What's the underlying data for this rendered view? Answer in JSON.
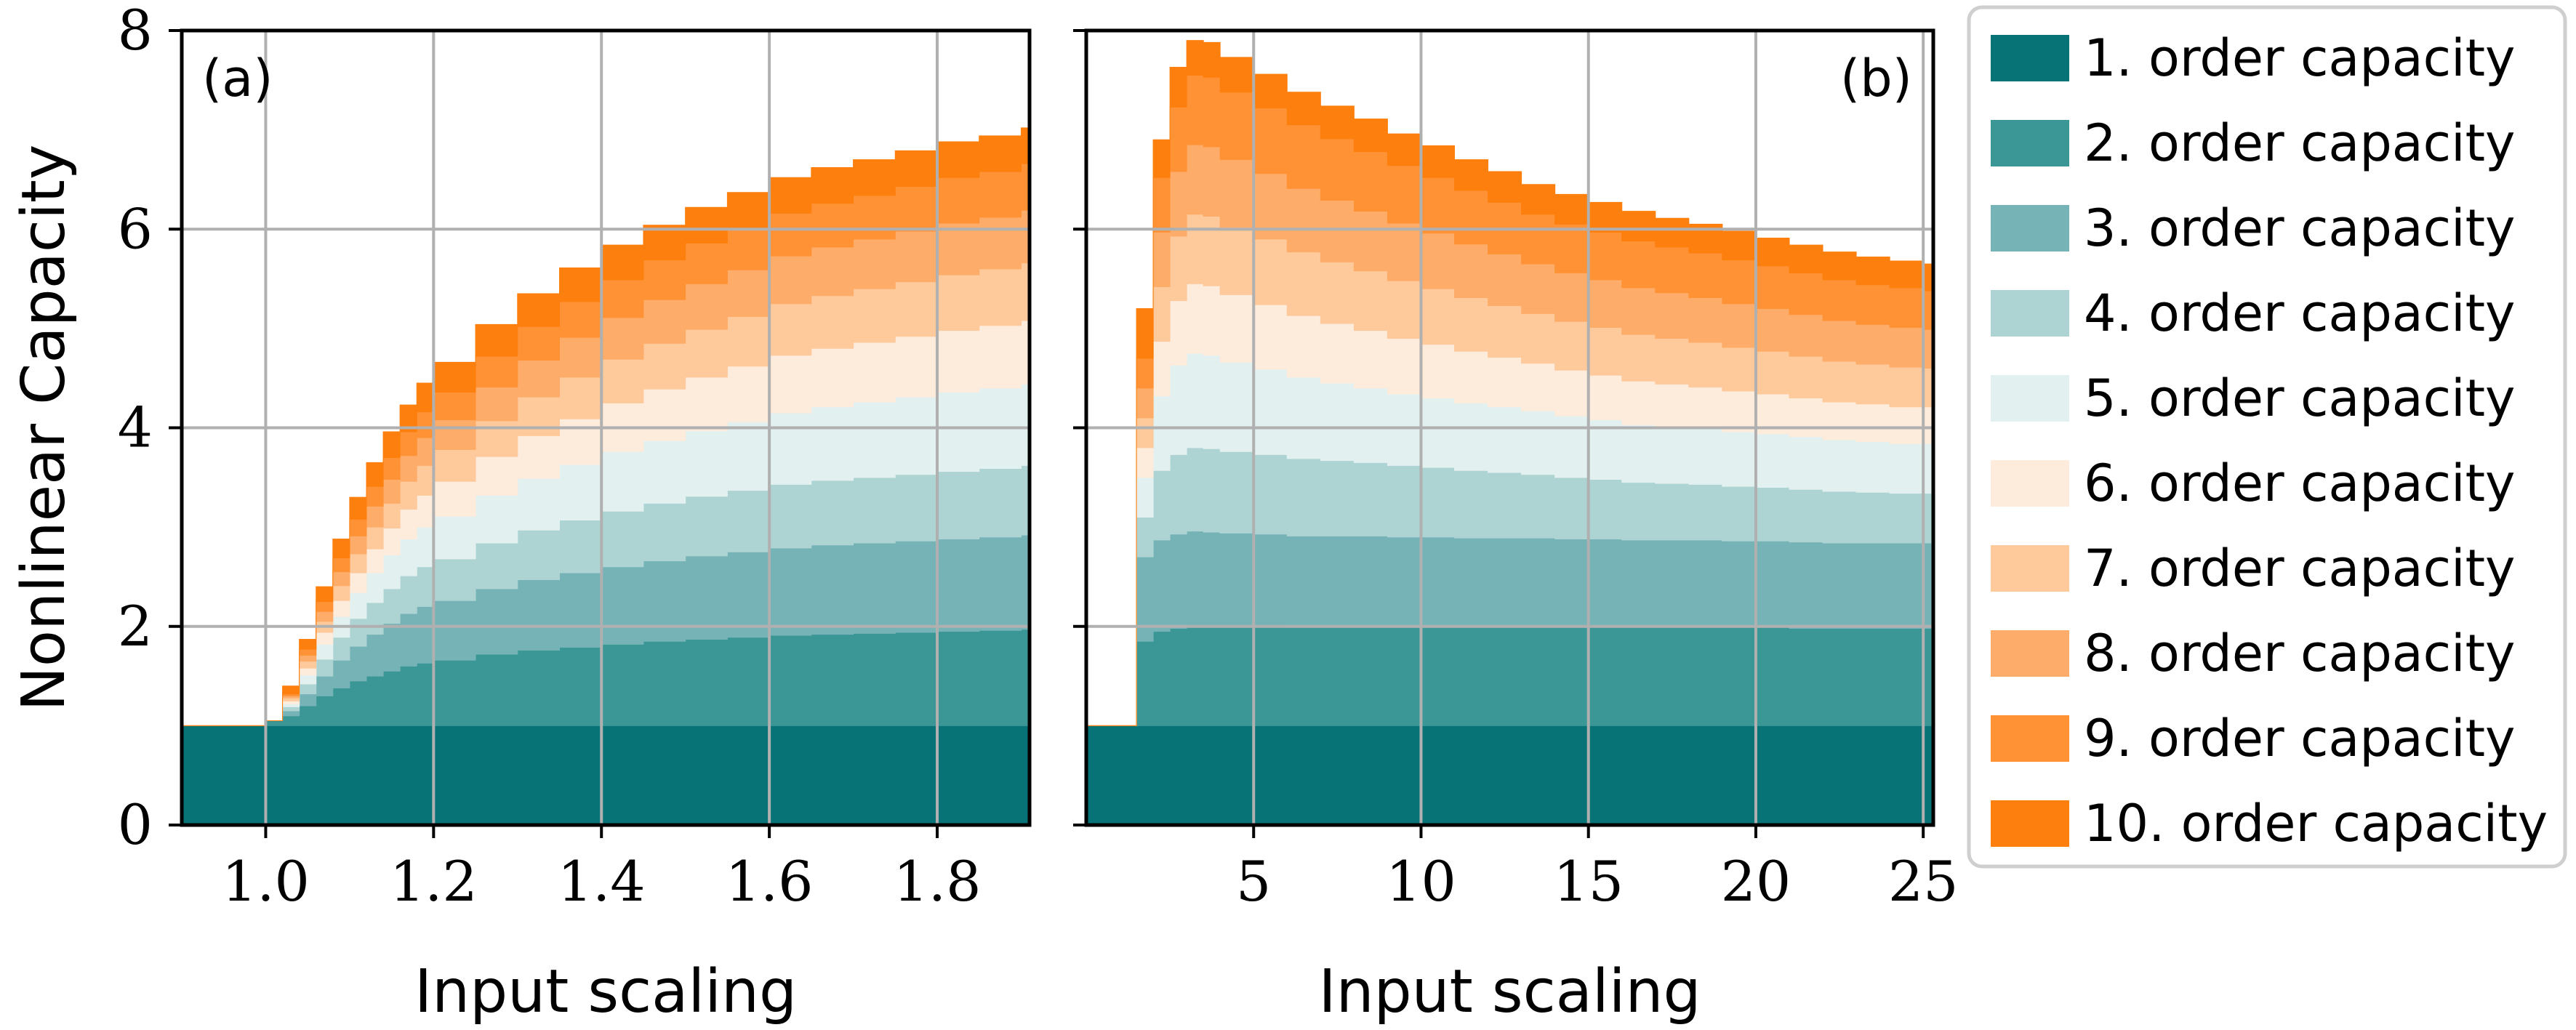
{
  "chart_data": [
    {
      "type": "area",
      "panel_label": "(a)",
      "xlabel": "Input scaling",
      "ylabel": "Nonlinear Capacity",
      "xlim": [
        0.9,
        1.91
      ],
      "ylim": [
        0,
        8
      ],
      "xticks": [
        1.0,
        1.2,
        1.4,
        1.6,
        1.8
      ],
      "xtick_labels": [
        "1.0",
        "1.2",
        "1.4",
        "1.6",
        "1.8"
      ],
      "yticks": [
        0,
        2,
        4,
        6,
        8
      ],
      "ytick_labels": [
        "0",
        "2",
        "4",
        "6",
        "8"
      ],
      "grid": true,
      "stacked": true,
      "step": true,
      "x": [
        0.9,
        0.95,
        1.0,
        1.02,
        1.04,
        1.06,
        1.08,
        1.1,
        1.12,
        1.14,
        1.16,
        1.18,
        1.2,
        1.25,
        1.3,
        1.35,
        1.4,
        1.45,
        1.5,
        1.55,
        1.6,
        1.65,
        1.7,
        1.75,
        1.8,
        1.85,
        1.9
      ],
      "series": [
        {
          "name": "1. order capacity",
          "values": [
            1.0,
            1.0,
            1.0,
            1.0,
            1.0,
            1.0,
            1.0,
            1.0,
            1.0,
            1.0,
            1.0,
            1.0,
            1.0,
            1.0,
            1.0,
            1.0,
            1.0,
            1.0,
            1.0,
            1.0,
            1.0,
            1.0,
            1.0,
            1.0,
            1.0,
            1.0,
            1.0
          ]
        },
        {
          "name": "2. order capacity",
          "values": [
            0.0,
            0.0,
            0.05,
            0.1,
            0.2,
            0.3,
            0.38,
            0.45,
            0.5,
            0.55,
            0.6,
            0.63,
            0.66,
            0.72,
            0.76,
            0.79,
            0.82,
            0.85,
            0.87,
            0.89,
            0.91,
            0.92,
            0.93,
            0.94,
            0.95,
            0.96,
            0.97
          ]
        },
        {
          "name": "3. order capacity",
          "values": [
            0.0,
            0.0,
            0.0,
            0.05,
            0.12,
            0.2,
            0.28,
            0.35,
            0.42,
            0.48,
            0.53,
            0.57,
            0.6,
            0.66,
            0.71,
            0.75,
            0.78,
            0.81,
            0.84,
            0.86,
            0.88,
            0.9,
            0.91,
            0.92,
            0.93,
            0.94,
            0.95
          ]
        },
        {
          "name": "4. order capacity",
          "values": [
            0.0,
            0.0,
            0.0,
            0.04,
            0.1,
            0.17,
            0.23,
            0.28,
            0.32,
            0.35,
            0.38,
            0.4,
            0.42,
            0.46,
            0.5,
            0.53,
            0.56,
            0.58,
            0.6,
            0.62,
            0.64,
            0.65,
            0.66,
            0.67,
            0.68,
            0.69,
            0.7
          ]
        },
        {
          "name": "5. order capacity",
          "values": [
            0.0,
            0.0,
            0.0,
            0.03,
            0.09,
            0.15,
            0.21,
            0.26,
            0.3,
            0.34,
            0.37,
            0.4,
            0.43,
            0.48,
            0.52,
            0.56,
            0.6,
            0.63,
            0.66,
            0.69,
            0.72,
            0.74,
            0.76,
            0.78,
            0.8,
            0.81,
            0.82
          ]
        },
        {
          "name": "6. order capacity",
          "values": [
            0.0,
            0.0,
            0.0,
            0.03,
            0.07,
            0.12,
            0.16,
            0.2,
            0.24,
            0.27,
            0.3,
            0.32,
            0.35,
            0.39,
            0.43,
            0.46,
            0.49,
            0.52,
            0.54,
            0.56,
            0.58,
            0.59,
            0.6,
            0.61,
            0.62,
            0.63,
            0.64
          ]
        },
        {
          "name": "7. order capacity",
          "values": [
            0.0,
            0.0,
            0.0,
            0.03,
            0.07,
            0.11,
            0.15,
            0.19,
            0.22,
            0.25,
            0.28,
            0.3,
            0.32,
            0.36,
            0.39,
            0.42,
            0.44,
            0.46,
            0.48,
            0.5,
            0.52,
            0.53,
            0.54,
            0.55,
            0.56,
            0.57,
            0.58
          ]
        },
        {
          "name": "8. order capacity",
          "values": [
            0.0,
            0.0,
            0.0,
            0.02,
            0.06,
            0.1,
            0.14,
            0.18,
            0.21,
            0.24,
            0.26,
            0.28,
            0.3,
            0.34,
            0.37,
            0.4,
            0.42,
            0.44,
            0.46,
            0.47,
            0.48,
            0.49,
            0.5,
            0.51,
            0.52,
            0.52,
            0.53
          ]
        },
        {
          "name": "9. order capacity",
          "values": [
            0.0,
            0.0,
            0.0,
            0.02,
            0.06,
            0.1,
            0.14,
            0.17,
            0.2,
            0.22,
            0.24,
            0.26,
            0.28,
            0.31,
            0.34,
            0.36,
            0.38,
            0.4,
            0.41,
            0.42,
            0.43,
            0.44,
            0.44,
            0.45,
            0.46,
            0.46,
            0.47
          ]
        },
        {
          "name": "10. order capacity",
          "values": [
            0.0,
            0.0,
            0.0,
            0.08,
            0.1,
            0.15,
            0.19,
            0.22,
            0.24,
            0.26,
            0.27,
            0.29,
            0.3,
            0.32,
            0.33,
            0.34,
            0.35,
            0.35,
            0.36,
            0.36,
            0.36,
            0.36,
            0.36,
            0.36,
            0.36,
            0.36,
            0.36
          ]
        }
      ]
    },
    {
      "type": "area",
      "panel_label": "(b)",
      "xlabel": "Input scaling",
      "ylabel": "",
      "xlim": [
        0.0,
        25.3
      ],
      "ylim": [
        0,
        8
      ],
      "xticks": [
        5,
        10,
        15,
        20,
        25
      ],
      "xtick_labels": [
        "5",
        "10",
        "15",
        "20",
        "25"
      ],
      "yticks": [
        0,
        2,
        4,
        6,
        8
      ],
      "ytick_labels": [
        "",
        "",
        "",
        "",
        ""
      ],
      "grid": true,
      "stacked": true,
      "step": true,
      "x": [
        0.0,
        1.0,
        1.5,
        2.0,
        2.5,
        3.0,
        3.5,
        4.0,
        5.0,
        6.0,
        7.0,
        8.0,
        9.0,
        10.0,
        11.0,
        12.0,
        13.0,
        14.0,
        15.0,
        16.0,
        17.0,
        18.0,
        19.0,
        20.0,
        21.0,
        22.0,
        23.0,
        24.0,
        25.0
      ],
      "series": [
        {
          "name": "1. order capacity",
          "values": [
            1.0,
            1.0,
            1.0,
            1.0,
            1.0,
            1.0,
            1.0,
            1.0,
            1.0,
            1.0,
            1.0,
            1.0,
            1.0,
            1.0,
            1.0,
            1.0,
            1.0,
            1.0,
            1.0,
            1.0,
            1.0,
            1.0,
            1.0,
            1.0,
            1.0,
            1.0,
            1.0,
            1.0,
            1.0
          ]
        },
        {
          "name": "2. order capacity",
          "values": [
            0.0,
            0.0,
            0.85,
            0.95,
            0.98,
            1.0,
            1.0,
            1.0,
            1.0,
            0.99,
            0.99,
            0.99,
            0.99,
            0.99,
            0.99,
            0.99,
            0.99,
            0.99,
            0.99,
            0.99,
            0.99,
            0.99,
            0.99,
            0.99,
            0.98,
            0.98,
            0.98,
            0.98,
            0.98
          ]
        },
        {
          "name": "3. order capacity",
          "values": [
            0.0,
            0.0,
            0.85,
            0.92,
            0.95,
            0.96,
            0.95,
            0.94,
            0.93,
            0.92,
            0.92,
            0.92,
            0.91,
            0.91,
            0.9,
            0.9,
            0.9,
            0.89,
            0.89,
            0.88,
            0.88,
            0.88,
            0.87,
            0.87,
            0.87,
            0.86,
            0.86,
            0.86,
            0.86
          ]
        },
        {
          "name": "4. order capacity",
          "values": [
            0.0,
            0.0,
            0.4,
            0.7,
            0.8,
            0.84,
            0.84,
            0.82,
            0.8,
            0.78,
            0.76,
            0.74,
            0.72,
            0.7,
            0.68,
            0.66,
            0.64,
            0.62,
            0.6,
            0.58,
            0.57,
            0.56,
            0.55,
            0.54,
            0.53,
            0.52,
            0.51,
            0.5,
            0.5
          ]
        },
        {
          "name": "5. order capacity",
          "values": [
            0.0,
            0.0,
            0.4,
            0.75,
            0.9,
            0.95,
            0.94,
            0.9,
            0.86,
            0.82,
            0.78,
            0.75,
            0.72,
            0.7,
            0.68,
            0.66,
            0.64,
            0.62,
            0.6,
            0.58,
            0.57,
            0.56,
            0.55,
            0.54,
            0.53,
            0.52,
            0.51,
            0.5,
            0.5
          ]
        },
        {
          "name": "6. order capacity",
          "values": [
            0.0,
            0.0,
            0.3,
            0.55,
            0.65,
            0.7,
            0.7,
            0.68,
            0.65,
            0.62,
            0.6,
            0.58,
            0.56,
            0.54,
            0.52,
            0.5,
            0.48,
            0.46,
            0.45,
            0.44,
            0.43,
            0.42,
            0.41,
            0.4,
            0.39,
            0.38,
            0.38,
            0.37,
            0.37
          ]
        },
        {
          "name": "7. order capacity",
          "values": [
            0.0,
            0.0,
            0.3,
            0.55,
            0.65,
            0.7,
            0.7,
            0.68,
            0.66,
            0.64,
            0.62,
            0.6,
            0.58,
            0.56,
            0.54,
            0.52,
            0.5,
            0.49,
            0.48,
            0.47,
            0.46,
            0.45,
            0.44,
            0.43,
            0.42,
            0.41,
            0.4,
            0.4,
            0.39
          ]
        },
        {
          "name": "8. order capacity",
          "values": [
            0.0,
            0.0,
            0.3,
            0.55,
            0.65,
            0.7,
            0.7,
            0.68,
            0.66,
            0.64,
            0.62,
            0.6,
            0.58,
            0.56,
            0.54,
            0.52,
            0.5,
            0.49,
            0.48,
            0.47,
            0.46,
            0.45,
            0.44,
            0.43,
            0.42,
            0.41,
            0.4,
            0.4,
            0.39
          ]
        },
        {
          "name": "9. order capacity",
          "values": [
            0.0,
            0.0,
            0.3,
            0.55,
            0.65,
            0.7,
            0.7,
            0.68,
            0.66,
            0.64,
            0.62,
            0.6,
            0.58,
            0.56,
            0.54,
            0.52,
            0.5,
            0.49,
            0.48,
            0.47,
            0.46,
            0.45,
            0.44,
            0.43,
            0.42,
            0.41,
            0.4,
            0.4,
            0.39
          ]
        },
        {
          "name": "10. order capacity",
          "values": [
            0.0,
            0.0,
            0.5,
            0.38,
            0.4,
            0.35,
            0.35,
            0.35,
            0.34,
            0.33,
            0.33,
            0.33,
            0.32,
            0.32,
            0.31,
            0.31,
            0.3,
            0.3,
            0.3,
            0.3,
            0.29,
            0.29,
            0.29,
            0.28,
            0.28,
            0.28,
            0.28,
            0.27,
            0.27
          ]
        }
      ]
    }
  ],
  "legend": {
    "placement": "right",
    "colors": [
      "#077377",
      "#3b9696",
      "#76b3b7",
      "#aed3d3",
      "#e2f0f0",
      "#fdebdc",
      "#fec99b",
      "#fdad69",
      "#fe9235",
      "#fd7f0d"
    ]
  }
}
